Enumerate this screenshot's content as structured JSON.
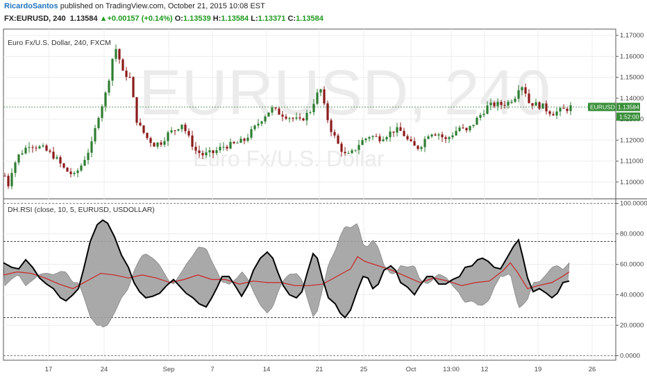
{
  "header": {
    "author": "RicardoSantos",
    "published_text": "published on TradingView.com, October 21, 2015 10:08 EST",
    "symbol_interval": "FX:EURUSD, 240",
    "last_price": "1.13584",
    "change": "+0.00157 (+0.14%)",
    "open_label": "O:",
    "open": "1.13539",
    "high_label": "H:",
    "high": "1.13584",
    "low_label": "L:",
    "low": "1.13371",
    "close_label": "C:",
    "close": "1.13584"
  },
  "price_pane": {
    "title": "Euro Fx/U.S. Dollar, 240, FXCM",
    "watermark_symbol": "EURUSD, 240",
    "watermark_desc": "Euro Fx/U.S. Dollar",
    "price_tag_symbol": "EURUSD",
    "price_tag_value": "1.13584",
    "countdown": "1:52:00"
  },
  "rsi_pane": {
    "title": "DH.RSI (close, 10, 5, EURUSD, USDOLLAR)"
  },
  "colors": {
    "up_candle": "#2e7d32",
    "down_candle": "#8b1a1a",
    "last_price_line": "#2e7d32",
    "price_tag_bg": "#3a8f3a",
    "rsi_black": "#000000",
    "rsi_red": "#cc2222",
    "band_fill": "#a0a0a0"
  },
  "chart_data": [
    {
      "type": "candlestick",
      "title": "Euro Fx/U.S. Dollar, 240, FXCM",
      "x_tick_labels": [
        "17",
        "24",
        "Sep",
        "7",
        "14",
        "21",
        "25",
        "Oct",
        "13:00",
        "12",
        "19",
        "26"
      ],
      "y_tick_labels": [
        "1.17000",
        "1.16000",
        "1.15000",
        "1.14000",
        "1.13000",
        "1.12000",
        "1.11000",
        "1.10000"
      ],
      "ylim": [
        1.092,
        1.173
      ],
      "last_price": 1.13584,
      "grid": true,
      "anchors": [
        [
          0,
          1.103
        ],
        [
          4,
          1.097
        ],
        [
          8,
          1.104
        ],
        [
          18,
          1.112
        ],
        [
          35,
          1.118
        ],
        [
          55,
          1.116
        ],
        [
          72,
          1.112
        ],
        [
          86,
          1.106
        ],
        [
          100,
          1.103
        ],
        [
          110,
          1.108
        ],
        [
          125,
          1.118
        ],
        [
          135,
          1.132
        ],
        [
          145,
          1.142
        ],
        [
          152,
          1.153
        ],
        [
          157,
          1.163
        ],
        [
          162,
          1.164
        ],
        [
          167,
          1.155
        ],
        [
          172,
          1.15
        ],
        [
          177,
          1.152
        ],
        [
          182,
          1.148
        ],
        [
          188,
          1.131
        ],
        [
          195,
          1.126
        ],
        [
          205,
          1.121
        ],
        [
          215,
          1.118
        ],
        [
          225,
          1.119
        ],
        [
          235,
          1.123
        ],
        [
          245,
          1.125
        ],
        [
          255,
          1.128
        ],
        [
          265,
          1.121
        ],
        [
          275,
          1.115
        ],
        [
          285,
          1.113
        ],
        [
          300,
          1.114
        ],
        [
          315,
          1.117
        ],
        [
          330,
          1.118
        ],
        [
          345,
          1.12
        ],
        [
          360,
          1.126
        ],
        [
          372,
          1.131
        ],
        [
          384,
          1.135
        ],
        [
          395,
          1.133
        ],
        [
          410,
          1.131
        ],
        [
          425,
          1.129
        ],
        [
          440,
          1.134
        ],
        [
          448,
          1.141
        ],
        [
          455,
          1.144
        ],
        [
          462,
          1.133
        ],
        [
          470,
          1.125
        ],
        [
          480,
          1.118
        ],
        [
          492,
          1.112
        ],
        [
          500,
          1.114
        ],
        [
          512,
          1.119
        ],
        [
          525,
          1.122
        ],
        [
          540,
          1.121
        ],
        [
          552,
          1.123
        ],
        [
          562,
          1.125
        ],
        [
          572,
          1.124
        ],
        [
          582,
          1.119
        ],
        [
          593,
          1.116
        ],
        [
          600,
          1.118
        ],
        [
          612,
          1.124
        ],
        [
          625,
          1.123
        ],
        [
          635,
          1.12
        ],
        [
          645,
          1.123
        ],
        [
          655,
          1.126
        ],
        [
          665,
          1.124
        ],
        [
          675,
          1.128
        ],
        [
          685,
          1.132
        ],
        [
          695,
          1.136
        ],
        [
          705,
          1.137
        ],
        [
          715,
          1.137
        ],
        [
          725,
          1.138
        ],
        [
          735,
          1.141
        ],
        [
          742,
          1.147
        ],
        [
          748,
          1.145
        ],
        [
          755,
          1.138
        ],
        [
          765,
          1.137
        ],
        [
          775,
          1.136
        ],
        [
          782,
          1.134
        ],
        [
          790,
          1.133
        ],
        [
          800,
          1.134
        ],
        [
          810,
          1.135
        ],
        [
          815,
          1.13584
        ]
      ]
    },
    {
      "type": "area",
      "title": "DH.RSI (close, 10, 5, EURUSD, USDOLLAR)",
      "y_tick_labels": [
        "100.0000",
        "80.0000",
        "60.0000",
        "40.0000",
        "20.0000",
        "0.0000"
      ],
      "ylim": [
        -3,
        103
      ],
      "levels": [
        75,
        25
      ],
      "series": [
        {
          "role": "line-black",
          "points": [
            [
              0,
              61
            ],
            [
              12,
              58
            ],
            [
              22,
              57
            ],
            [
              32,
              63
            ],
            [
              42,
              58
            ],
            [
              52,
              51
            ],
            [
              62,
              47
            ],
            [
              72,
              44
            ],
            [
              82,
              38
            ],
            [
              90,
              36
            ],
            [
              100,
              40
            ],
            [
              108,
              44
            ],
            [
              115,
              56
            ],
            [
              125,
              75
            ],
            [
              135,
              86
            ],
            [
              143,
              89
            ],
            [
              150,
              87
            ],
            [
              160,
              78
            ],
            [
              170,
              66
            ],
            [
              180,
              58
            ],
            [
              188,
              48
            ],
            [
              196,
              42
            ],
            [
              205,
              38
            ],
            [
              215,
              39
            ],
            [
              225,
              41
            ],
            [
              235,
              46
            ],
            [
              245,
              50
            ],
            [
              255,
              45
            ],
            [
              263,
              41
            ],
            [
              273,
              38
            ],
            [
              282,
              34
            ],
            [
              292,
              32
            ],
            [
              300,
              38
            ],
            [
              308,
              45
            ],
            [
              315,
              52
            ],
            [
              325,
              52
            ],
            [
              335,
              45
            ],
            [
              343,
              39
            ],
            [
              352,
              46
            ],
            [
              360,
              56
            ],
            [
              370,
              64
            ],
            [
              380,
              68
            ],
            [
              388,
              64
            ],
            [
              395,
              55
            ],
            [
              403,
              46
            ],
            [
              412,
              40
            ],
            [
              422,
              38
            ],
            [
              430,
              42
            ],
            [
              438,
              55
            ],
            [
              446,
              67
            ],
            [
              452,
              64
            ],
            [
              460,
              50
            ],
            [
              468,
              38
            ],
            [
              478,
              34
            ],
            [
              485,
              28
            ],
            [
              492,
              25
            ],
            [
              500,
              30
            ],
            [
              510,
              43
            ],
            [
              518,
              52
            ],
            [
              525,
              51
            ],
            [
              532,
              44
            ],
            [
              540,
              47
            ],
            [
              548,
              56
            ],
            [
              558,
              59
            ],
            [
              565,
              56
            ],
            [
              572,
              48
            ],
            [
              582,
              45
            ],
            [
              592,
              40
            ],
            [
              600,
              46
            ],
            [
              610,
              52
            ],
            [
              618,
              52
            ],
            [
              627,
              47
            ],
            [
              637,
              47
            ],
            [
              647,
              50
            ],
            [
              657,
              52
            ],
            [
              665,
              58
            ],
            [
              675,
              59
            ],
            [
              683,
              63
            ],
            [
              690,
              64
            ],
            [
              698,
              62
            ],
            [
              707,
              58
            ],
            [
              716,
              57
            ],
            [
              725,
              64
            ],
            [
              735,
              72
            ],
            [
              742,
              76
            ],
            [
              748,
              65
            ],
            [
              755,
              51
            ],
            [
              763,
              42
            ],
            [
              772,
              44
            ],
            [
              782,
              41
            ],
            [
              790,
              38
            ],
            [
              798,
              41
            ],
            [
              806,
              48
            ],
            [
              815,
              49
            ]
          ]
        },
        {
          "role": "line-red",
          "points": [
            [
              0,
              53
            ],
            [
              20,
              55
            ],
            [
              40,
              54
            ],
            [
              60,
              51
            ],
            [
              80,
              47
            ],
            [
              100,
              44
            ],
            [
              120,
              49
            ],
            [
              140,
              54
            ],
            [
              160,
              53
            ],
            [
              180,
              51
            ],
            [
              200,
              53
            ],
            [
              220,
              51
            ],
            [
              240,
              48
            ],
            [
              260,
              50
            ],
            [
              280,
              53
            ],
            [
              300,
              50
            ],
            [
              320,
              50
            ],
            [
              340,
              47
            ],
            [
              360,
              49
            ],
            [
              380,
              48
            ],
            [
              400,
              48
            ],
            [
              420,
              46
            ],
            [
              440,
              46
            ],
            [
              460,
              47
            ],
            [
              480,
              52
            ],
            [
              500,
              57
            ],
            [
              510,
              65
            ],
            [
              520,
              62
            ],
            [
              540,
              59
            ],
            [
              560,
              56
            ],
            [
              580,
              52
            ],
            [
              600,
              48
            ],
            [
              620,
              51
            ],
            [
              640,
              49
            ],
            [
              660,
              46
            ],
            [
              680,
              48
            ],
            [
              700,
              49
            ],
            [
              720,
              56
            ],
            [
              730,
              61
            ],
            [
              740,
              55
            ],
            [
              755,
              44
            ],
            [
              770,
              46
            ],
            [
              790,
              48
            ],
            [
              805,
              52
            ],
            [
              815,
              55
            ]
          ]
        }
      ],
      "x_tick_labels": [
        "17",
        "24",
        "Sep",
        "7",
        "14",
        "21",
        "25",
        "Oct",
        "13:00",
        "12",
        "19",
        "26"
      ]
    }
  ]
}
